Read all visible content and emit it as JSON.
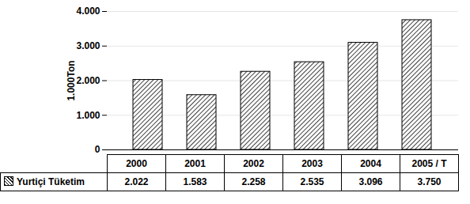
{
  "chart_data": {
    "type": "bar",
    "y_label": "1.000Ton",
    "categories": [
      "2000",
      "2001",
      "2002",
      "2003",
      "2004",
      "2005 / T"
    ],
    "series": [
      {
        "name": "Yurtiçi Tüketim",
        "color": "#000000",
        "values": [
          2022,
          1583,
          2258,
          2535,
          3096,
          3750
        ],
        "value_labels": [
          "2.022",
          "1.583",
          "2.258",
          "2.535",
          "3.096",
          "3.750"
        ]
      }
    ],
    "ylim": [
      0,
      4000
    ],
    "yticks": [
      0,
      {
        "value": 1000,
        "label": "1.000"
      },
      {
        "value": 2000,
        "label": "2.000"
      },
      {
        "value": 3000,
        "label": "3.000"
      },
      {
        "value": 4000,
        "label": "4.000"
      }
    ],
    "grid": true
  }
}
